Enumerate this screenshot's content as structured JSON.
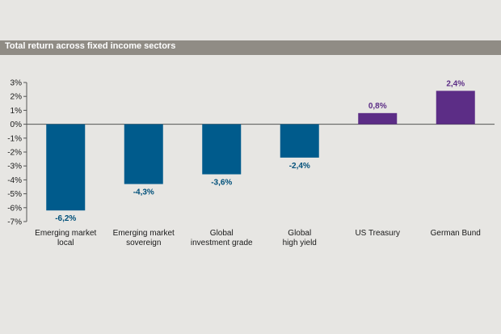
{
  "chart_data": {
    "type": "bar",
    "title": "Total return across fixed income sectors",
    "categories": [
      [
        "Emerging market",
        "local"
      ],
      [
        "Emerging market",
        "sovereign"
      ],
      [
        "Global",
        "investment grade"
      ],
      [
        "Global",
        "high yield"
      ],
      [
        "US Treasury"
      ],
      [
        "German Bund"
      ]
    ],
    "values": [
      -6.2,
      -4.3,
      -3.6,
      -2.4,
      0.8,
      2.4
    ],
    "value_labels": [
      "-6,2%",
      "-4,3%",
      "-3,6%",
      "-2,4%",
      "0,8%",
      "2,4%"
    ],
    "bar_colors": [
      "#005b8c",
      "#005b8c",
      "#005b8c",
      "#005b8c",
      "#5c2d86",
      "#5c2d86"
    ],
    "label_colors": [
      "#00507a",
      "#00507a",
      "#00507a",
      "#00507a",
      "#5c2d86",
      "#5c2d86"
    ],
    "ylim": [
      -7,
      3
    ],
    "yticks": [
      3,
      2,
      1,
      0,
      -1,
      -2,
      -3,
      -4,
      -5,
      -6,
      -7
    ],
    "ytick_labels": [
      "3%",
      "2%",
      "1%",
      "0%",
      "-1%",
      "-2%",
      "-3%",
      "-4%",
      "-5%",
      "-6%",
      "-7%"
    ],
    "xlabel": "",
    "ylabel": "",
    "grid": false,
    "legend": "none"
  }
}
